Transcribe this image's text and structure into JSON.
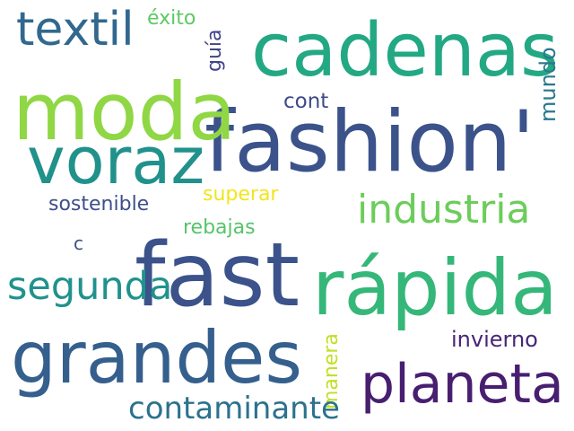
{
  "words": [
    {
      "text": "fashion'",
      "color": "#3b528b"
    },
    {
      "text": "cadenas",
      "color": "#23a884"
    },
    {
      "text": "moda",
      "color": "#8fd744"
    },
    {
      "text": "voraz",
      "color": "#21918c"
    },
    {
      "text": "textil",
      "color": "#31688e"
    },
    {
      "text": "éxito",
      "color": "#5ec962"
    },
    {
      "text": "guía",
      "color": "#414487"
    },
    {
      "text": "mundo",
      "color": "#2a788e"
    },
    {
      "text": "cont",
      "color": "#3e4a89"
    },
    {
      "text": "industria",
      "color": "#6ccd5a"
    },
    {
      "text": "superar",
      "color": "#f1e51d"
    },
    {
      "text": "sostenible",
      "color": "#3d4e8a"
    },
    {
      "text": "rebajas",
      "color": "#54c568"
    },
    {
      "text": "c",
      "color": "#3b528b"
    },
    {
      "text": "fast",
      "color": "#3b528b"
    },
    {
      "text": "rápida",
      "color": "#35b779"
    },
    {
      "text": "segunda",
      "color": "#20928c"
    },
    {
      "text": "grandes",
      "color": "#355f8d"
    },
    {
      "text": "planeta",
      "color": "#481f70"
    },
    {
      "text": "manera",
      "color": "#c2df23"
    },
    {
      "text": "invierno",
      "color": "#482576"
    },
    {
      "text": "contaminante",
      "color": "#2c718e"
    }
  ]
}
